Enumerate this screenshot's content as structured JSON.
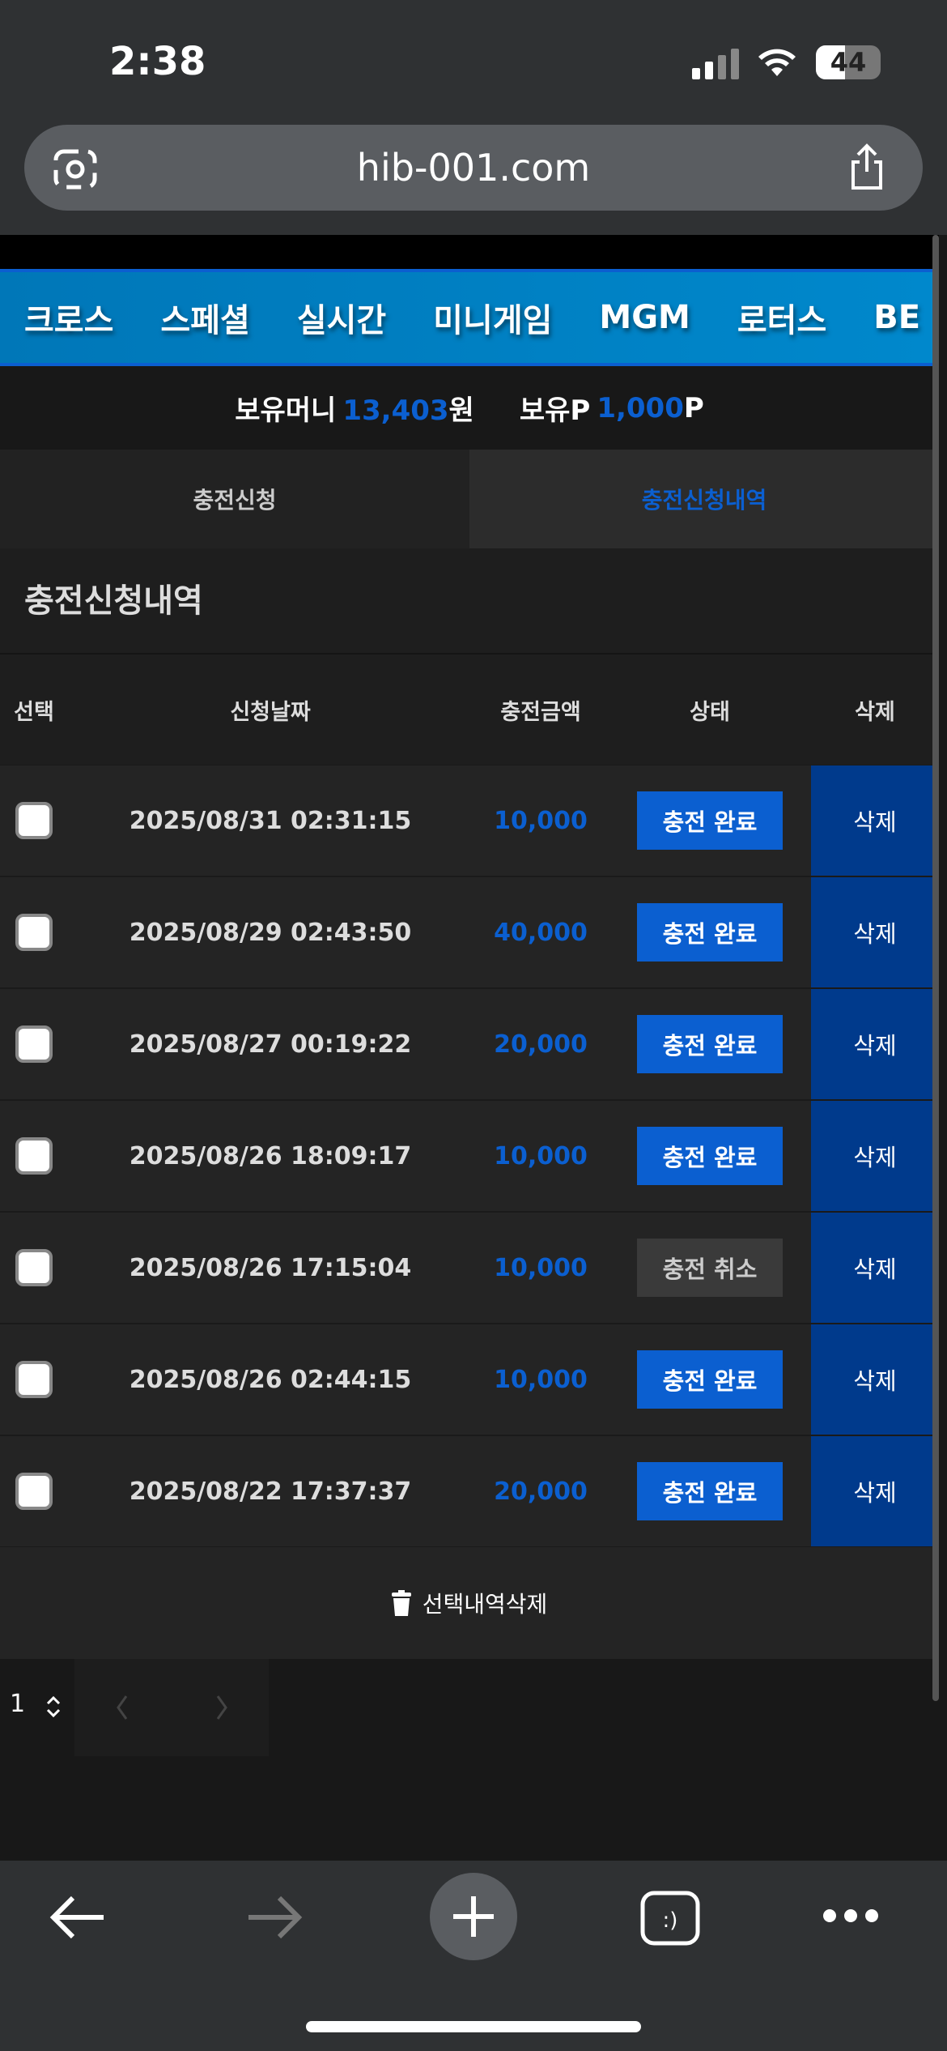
{
  "status_bar": {
    "time": "2:38",
    "battery": "44"
  },
  "browser": {
    "url": "hib-001.com"
  },
  "nav": {
    "items": [
      "크로스",
      "스페셜",
      "실시간",
      "미니게임",
      "MGM",
      "로터스",
      "BE"
    ]
  },
  "balance": {
    "money_label": "보유머니",
    "money_value": "13,403",
    "money_unit": "원",
    "point_label": "보유P",
    "point_value": "1,000",
    "point_unit": "P"
  },
  "tabs": [
    {
      "label": "충전신청",
      "active": false
    },
    {
      "label": "충전신청내역",
      "active": true
    }
  ],
  "section_title": "충전신청내역",
  "table": {
    "headers": [
      "선택",
      "신청날짜",
      "충전금액",
      "상태",
      "삭제"
    ],
    "rows": [
      {
        "date": "2025/08/31 02:31:15",
        "amount": "10,000",
        "status": "충전 완료",
        "delete": "삭제"
      },
      {
        "date": "2025/08/29 02:43:50",
        "amount": "40,000",
        "status": "충전 완료",
        "delete": "삭제"
      },
      {
        "date": "2025/08/27 00:19:22",
        "amount": "20,000",
        "status": "충전 완료",
        "delete": "삭제"
      },
      {
        "date": "2025/08/26 18:09:17",
        "amount": "10,000",
        "status": "충전 완료",
        "delete": "삭제"
      },
      {
        "date": "2025/08/26 17:15:04",
        "amount": "10,000",
        "status": "충전 취소",
        "delete": "삭제"
      },
      {
        "date": "2025/08/26 02:44:15",
        "amount": "10,000",
        "status": "충전 완료",
        "delete": "삭제"
      },
      {
        "date": "2025/08/22 17:37:37",
        "amount": "20,000",
        "status": "충전 완료",
        "delete": "삭제"
      }
    ]
  },
  "delete_selected": "선택내역삭제",
  "pagination": {
    "page": "1"
  },
  "colors": {
    "accent": "#0b5fd0",
    "complete": "#0b5fd0",
    "cancel": "#3a3a3a",
    "delete_cell": "#003a8c",
    "nav": "#0088cc"
  }
}
